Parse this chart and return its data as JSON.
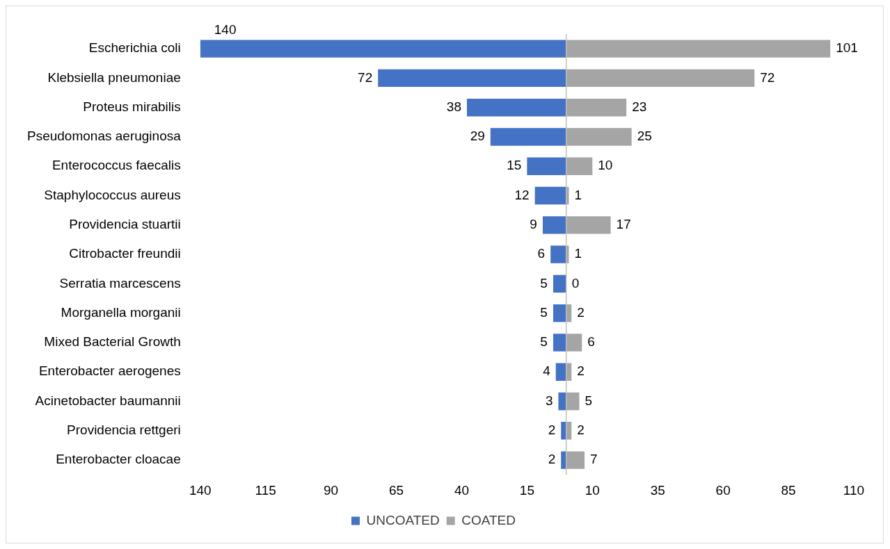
{
  "chart_data": {
    "type": "bar",
    "orientation": "horizontal",
    "categories": [
      "Escherichia coli",
      "Klebsiella pneumoniae",
      "Proteus mirabilis",
      "Pseudomonas aeruginosa",
      "Enterococcus faecalis",
      "Staphylococcus aureus",
      "Providencia stuartii",
      "Citrobacter freundii",
      "Serratia marcescens",
      "Morganella morganii",
      "Mixed Bacterial Growth",
      "Enterobacter aerogenes",
      "Acinetobacter baumannii",
      "Providencia rettgeri",
      "Enterobacter cloacae"
    ],
    "series": [
      {
        "name": "UNCOATED",
        "color": "#4472c4",
        "values": [
          140,
          72,
          38,
          29,
          15,
          12,
          9,
          6,
          5,
          5,
          5,
          4,
          3,
          2,
          2
        ],
        "base": [
          -140,
          -72,
          -38,
          -29,
          -15,
          -12,
          -9,
          -6,
          -5,
          -5,
          -5,
          -4,
          -3,
          -2,
          -2
        ],
        "value_labels": [
          "140",
          "72",
          "38",
          "29",
          "15",
          "12",
          "9",
          "6",
          "5",
          "5",
          "5",
          "4",
          "3",
          "2",
          "2"
        ]
      },
      {
        "name": "COATED",
        "color": "#a5a5a5",
        "values": [
          101,
          72,
          23,
          25,
          10,
          1,
          17,
          1,
          0,
          2,
          6,
          2,
          5,
          2,
          7
        ],
        "value_labels": [
          "101",
          "72",
          "23",
          "25",
          "10",
          "1",
          "17",
          "1",
          "0",
          "2",
          "6",
          "2",
          "5",
          "2",
          "7"
        ]
      }
    ],
    "xlim": [
      -140,
      110
    ],
    "xticks": [
      {
        "value": -140,
        "label": "140"
      },
      {
        "value": -115,
        "label": "115"
      },
      {
        "value": -90,
        "label": "90"
      },
      {
        "value": -65,
        "label": "65"
      },
      {
        "value": -40,
        "label": "40"
      },
      {
        "value": -15,
        "label": "15"
      },
      10,
      35,
      60,
      85,
      110
    ],
    "ref_lines": [
      {
        "axis": "x",
        "value": 0,
        "color": "#bfbfbf"
      }
    ],
    "grid": false,
    "legend": "bottom"
  }
}
